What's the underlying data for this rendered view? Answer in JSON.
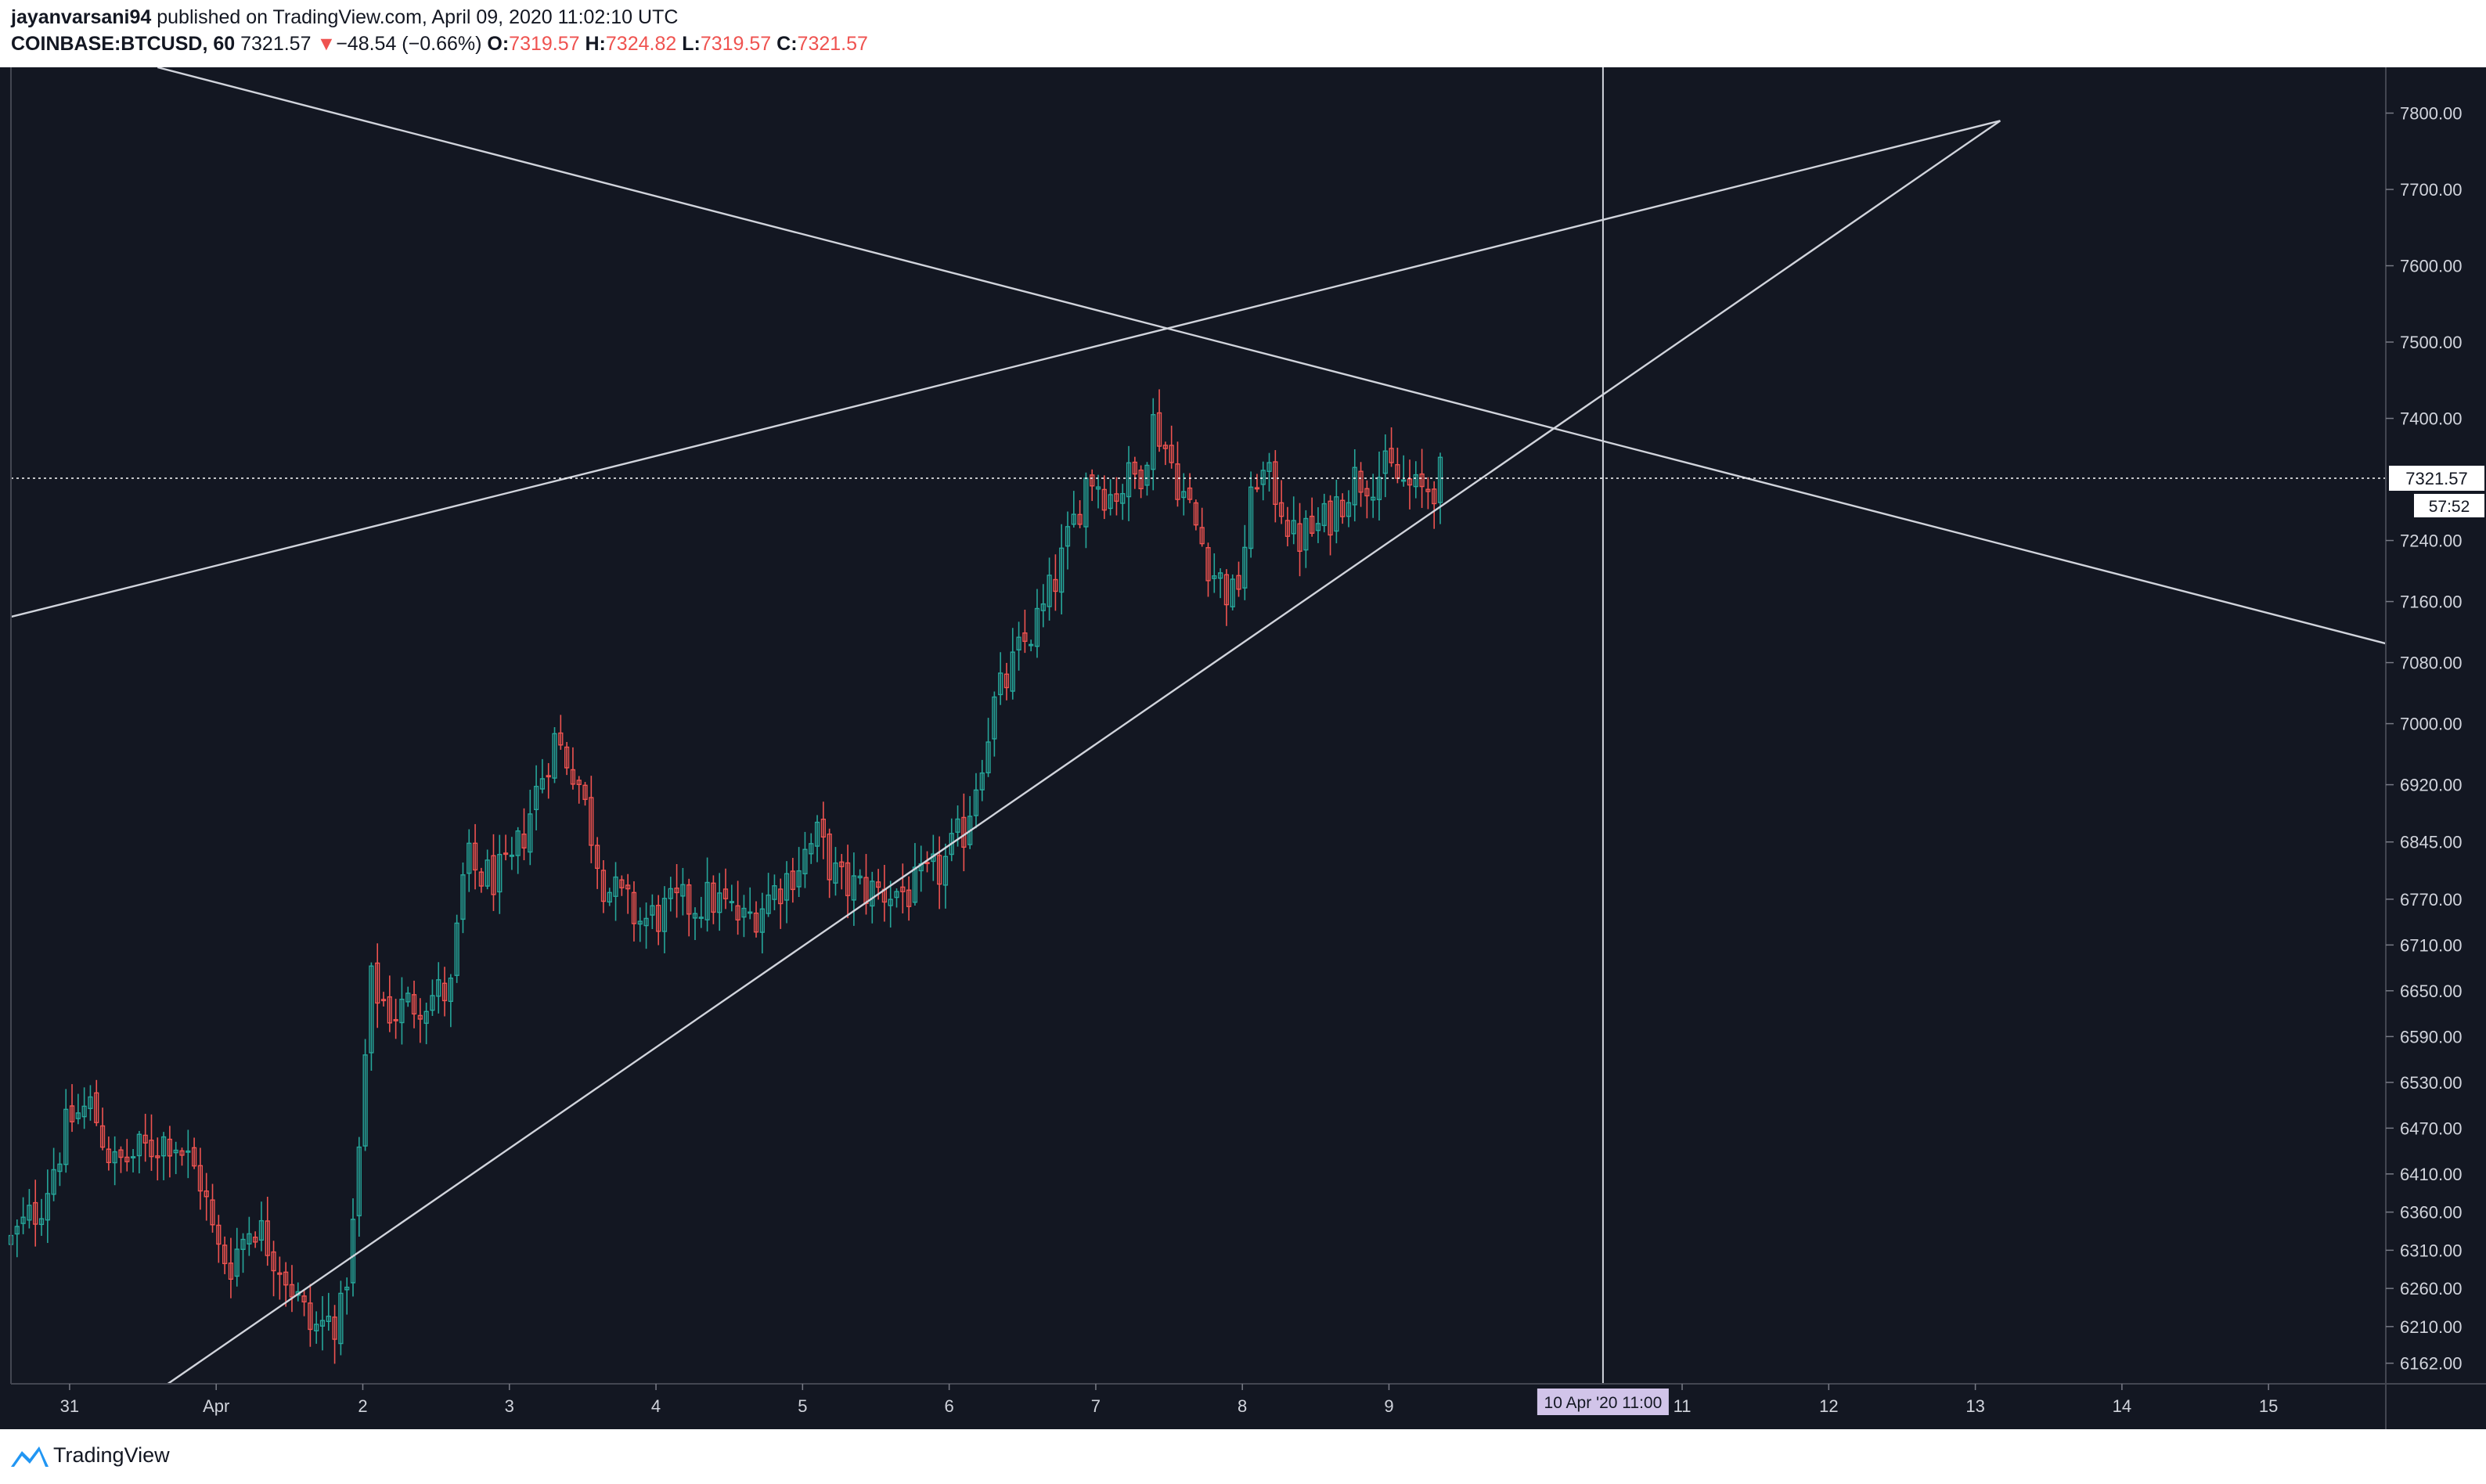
{
  "header": {
    "publisher": "jayanvarsani94",
    "published_text": "published on TradingView.com, April 09, 2020 11:02:10 UTC",
    "symbol": "COINBASE:BTCUSD, 60",
    "last_price": "7321.57",
    "change_arrow": "▼",
    "change": "−48.54 (−0.66%)",
    "open_label": "O:",
    "open": "7319.57",
    "high_label": "H:",
    "high": "7324.82",
    "low_label": "L:",
    "low": "7319.57",
    "close_label": "C:",
    "close": "7321.57"
  },
  "footer": {
    "brand": "TradingView"
  },
  "colors": {
    "background": "#131722",
    "up": "#26a69a",
    "down": "#ef5350",
    "line": "#d1d4dc",
    "crosshair_label_bg": "#d1c4e9"
  },
  "chart_data": {
    "type": "candlestick",
    "interval": "60",
    "x_range": [
      -0.4,
      15.8
    ],
    "y_range": [
      6135,
      7860
    ],
    "y_ticks": [
      "7800.00",
      "7700.00",
      "7600.00",
      "7500.00",
      "7400.00",
      "7240.00",
      "7160.00",
      "7080.00",
      "7000.00",
      "6920.00",
      "6845.00",
      "6770.00",
      "6710.00",
      "6650.00",
      "6590.00",
      "6530.00",
      "6470.00",
      "6410.00",
      "6360.00",
      "6310.00",
      "6260.00",
      "6210.00",
      "6162.00"
    ],
    "x_ticks": [
      {
        "label": "31",
        "day": 0
      },
      {
        "label": "Apr",
        "day": 1
      },
      {
        "label": "2",
        "day": 2
      },
      {
        "label": "3",
        "day": 3
      },
      {
        "label": "4",
        "day": 4
      },
      {
        "label": "5",
        "day": 5
      },
      {
        "label": "6",
        "day": 6
      },
      {
        "label": "7",
        "day": 7
      },
      {
        "label": "8",
        "day": 8
      },
      {
        "label": "9",
        "day": 9
      },
      {
        "label": "11",
        "day": 11
      },
      {
        "label": "12",
        "day": 12
      },
      {
        "label": "13",
        "day": 13
      },
      {
        "label": "14",
        "day": 14
      },
      {
        "label": "15",
        "day": 15
      }
    ],
    "price_line": {
      "value": 7321.57,
      "label": "7321.57",
      "countdown": "57:52"
    },
    "crosshair": {
      "day": 10.46,
      "label": "10 Apr '20   11:00"
    },
    "trendlines": [
      {
        "from": [
          -0.4,
          7140
        ],
        "to": [
          13.17,
          7790
        ]
      },
      {
        "from": [
          0.67,
          6135
        ],
        "to": [
          13.17,
          7790
        ]
      },
      {
        "from": [
          0.6,
          7860
        ],
        "to": [
          15.8,
          7105
        ]
      }
    ],
    "waypoints": [
      [
        -0.4,
        6320
      ],
      [
        -0.2,
        6370
      ],
      [
        0.0,
        6480
      ],
      [
        0.15,
        6500
      ],
      [
        0.3,
        6420
      ],
      [
        0.5,
        6440
      ],
      [
        0.7,
        6460
      ],
      [
        0.9,
        6400
      ],
      [
        1.0,
        6310
      ],
      [
        1.1,
        6295
      ],
      [
        1.25,
        6350
      ],
      [
        1.45,
        6290
      ],
      [
        1.65,
        6205
      ],
      [
        1.85,
        6225
      ],
      [
        1.95,
        6360
      ],
      [
        2.05,
        6660
      ],
      [
        2.2,
        6620
      ],
      [
        2.4,
        6640
      ],
      [
        2.6,
        6650
      ],
      [
        2.7,
        6820
      ],
      [
        2.8,
        6800
      ],
      [
        3.0,
        6800
      ],
      [
        3.3,
        6980
      ],
      [
        3.45,
        6940
      ],
      [
        3.65,
        6790
      ],
      [
        3.9,
        6740
      ],
      [
        4.15,
        6760
      ],
      [
        4.4,
        6770
      ],
      [
        4.6,
        6740
      ],
      [
        4.9,
        6800
      ],
      [
        5.1,
        6850
      ],
      [
        5.25,
        6790
      ],
      [
        5.5,
        6780
      ],
      [
        5.75,
        6780
      ],
      [
        5.95,
        6810
      ],
      [
        6.1,
        6860
      ],
      [
        6.3,
        7020
      ],
      [
        6.5,
        7100
      ],
      [
        6.65,
        7150
      ],
      [
        6.8,
        7230
      ],
      [
        6.95,
        7330
      ],
      [
        7.1,
        7300
      ],
      [
        7.3,
        7330
      ],
      [
        7.4,
        7400
      ],
      [
        7.6,
        7300
      ],
      [
        7.8,
        7200
      ],
      [
        7.95,
        7160
      ],
      [
        8.1,
        7330
      ],
      [
        8.25,
        7300
      ],
      [
        8.35,
        7240
      ],
      [
        8.55,
        7260
      ],
      [
        8.75,
        7320
      ],
      [
        9.0,
        7330
      ],
      [
        9.2,
        7300
      ],
      [
        9.35,
        7321.57
      ]
    ]
  }
}
